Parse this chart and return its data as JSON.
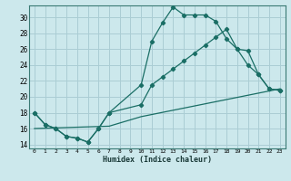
{
  "title": "",
  "xlabel": "Humidex (Indice chaleur)",
  "background_color": "#cce8ec",
  "grid_color": "#aacdd4",
  "line_color": "#1a6e65",
  "xlim": [
    -0.5,
    23.5
  ],
  "ylim": [
    13.5,
    31.5
  ],
  "xticks": [
    0,
    1,
    2,
    3,
    4,
    5,
    6,
    7,
    8,
    9,
    10,
    11,
    12,
    13,
    14,
    15,
    16,
    17,
    18,
    19,
    20,
    21,
    22,
    23
  ],
  "yticks": [
    14,
    16,
    18,
    20,
    22,
    24,
    26,
    28,
    30
  ],
  "line1_x": [
    0,
    1,
    2,
    3,
    4,
    5,
    6,
    7,
    10,
    11,
    12,
    13,
    14,
    15,
    16,
    17,
    18,
    19,
    20,
    21,
    22,
    23
  ],
  "line1_y": [
    18,
    16.5,
    16,
    15,
    14.8,
    14.3,
    16,
    18,
    21.5,
    27.0,
    29.3,
    31.3,
    30.3,
    30.3,
    30.3,
    29.5,
    27.3,
    26.0,
    25.8,
    22.8,
    21.0,
    20.8
  ],
  "line2_x": [
    0,
    1,
    2,
    3,
    4,
    5,
    6,
    7,
    10,
    11,
    12,
    13,
    14,
    15,
    16,
    17,
    18,
    19,
    20,
    21,
    22,
    23
  ],
  "line2_y": [
    18,
    16.5,
    16,
    15,
    14.8,
    14.3,
    16,
    18,
    19.0,
    21.5,
    22.5,
    23.5,
    24.5,
    25.5,
    26.5,
    27.5,
    28.5,
    26.0,
    24.0,
    22.8,
    21.0,
    20.8
  ],
  "line3_x": [
    0,
    7,
    10,
    23
  ],
  "line3_y": [
    16,
    16.3,
    17.5,
    21.0
  ]
}
